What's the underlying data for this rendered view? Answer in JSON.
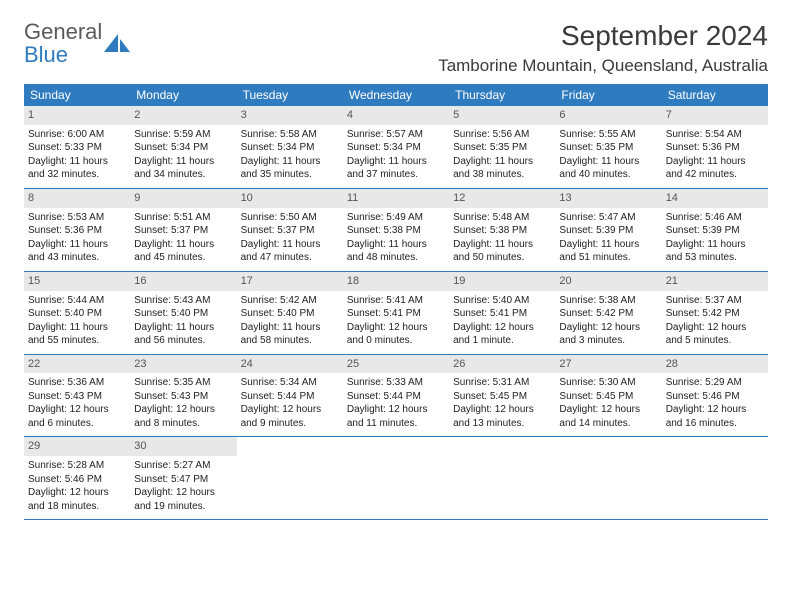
{
  "logo": {
    "line1": "General",
    "line2": "Blue"
  },
  "title": "September 2024",
  "location": "Tamborine Mountain, Queensland, Australia",
  "colors": {
    "header_bg": "#2f7bbf",
    "header_text": "#ffffff",
    "daynum_bg": "#e8e8e8",
    "row_border": "#2f7bbf",
    "logo_gray": "#5a5a5a",
    "logo_blue": "#2f7bbf"
  },
  "weekdays": [
    "Sunday",
    "Monday",
    "Tuesday",
    "Wednesday",
    "Thursday",
    "Friday",
    "Saturday"
  ],
  "weeks": [
    [
      {
        "num": "1",
        "sunrise": "Sunrise: 6:00 AM",
        "sunset": "Sunset: 5:33 PM",
        "daylight": "Daylight: 11 hours and 32 minutes."
      },
      {
        "num": "2",
        "sunrise": "Sunrise: 5:59 AM",
        "sunset": "Sunset: 5:34 PM",
        "daylight": "Daylight: 11 hours and 34 minutes."
      },
      {
        "num": "3",
        "sunrise": "Sunrise: 5:58 AM",
        "sunset": "Sunset: 5:34 PM",
        "daylight": "Daylight: 11 hours and 35 minutes."
      },
      {
        "num": "4",
        "sunrise": "Sunrise: 5:57 AM",
        "sunset": "Sunset: 5:34 PM",
        "daylight": "Daylight: 11 hours and 37 minutes."
      },
      {
        "num": "5",
        "sunrise": "Sunrise: 5:56 AM",
        "sunset": "Sunset: 5:35 PM",
        "daylight": "Daylight: 11 hours and 38 minutes."
      },
      {
        "num": "6",
        "sunrise": "Sunrise: 5:55 AM",
        "sunset": "Sunset: 5:35 PM",
        "daylight": "Daylight: 11 hours and 40 minutes."
      },
      {
        "num": "7",
        "sunrise": "Sunrise: 5:54 AM",
        "sunset": "Sunset: 5:36 PM",
        "daylight": "Daylight: 11 hours and 42 minutes."
      }
    ],
    [
      {
        "num": "8",
        "sunrise": "Sunrise: 5:53 AM",
        "sunset": "Sunset: 5:36 PM",
        "daylight": "Daylight: 11 hours and 43 minutes."
      },
      {
        "num": "9",
        "sunrise": "Sunrise: 5:51 AM",
        "sunset": "Sunset: 5:37 PM",
        "daylight": "Daylight: 11 hours and 45 minutes."
      },
      {
        "num": "10",
        "sunrise": "Sunrise: 5:50 AM",
        "sunset": "Sunset: 5:37 PM",
        "daylight": "Daylight: 11 hours and 47 minutes."
      },
      {
        "num": "11",
        "sunrise": "Sunrise: 5:49 AM",
        "sunset": "Sunset: 5:38 PM",
        "daylight": "Daylight: 11 hours and 48 minutes."
      },
      {
        "num": "12",
        "sunrise": "Sunrise: 5:48 AM",
        "sunset": "Sunset: 5:38 PM",
        "daylight": "Daylight: 11 hours and 50 minutes."
      },
      {
        "num": "13",
        "sunrise": "Sunrise: 5:47 AM",
        "sunset": "Sunset: 5:39 PM",
        "daylight": "Daylight: 11 hours and 51 minutes."
      },
      {
        "num": "14",
        "sunrise": "Sunrise: 5:46 AM",
        "sunset": "Sunset: 5:39 PM",
        "daylight": "Daylight: 11 hours and 53 minutes."
      }
    ],
    [
      {
        "num": "15",
        "sunrise": "Sunrise: 5:44 AM",
        "sunset": "Sunset: 5:40 PM",
        "daylight": "Daylight: 11 hours and 55 minutes."
      },
      {
        "num": "16",
        "sunrise": "Sunrise: 5:43 AM",
        "sunset": "Sunset: 5:40 PM",
        "daylight": "Daylight: 11 hours and 56 minutes."
      },
      {
        "num": "17",
        "sunrise": "Sunrise: 5:42 AM",
        "sunset": "Sunset: 5:40 PM",
        "daylight": "Daylight: 11 hours and 58 minutes."
      },
      {
        "num": "18",
        "sunrise": "Sunrise: 5:41 AM",
        "sunset": "Sunset: 5:41 PM",
        "daylight": "Daylight: 12 hours and 0 minutes."
      },
      {
        "num": "19",
        "sunrise": "Sunrise: 5:40 AM",
        "sunset": "Sunset: 5:41 PM",
        "daylight": "Daylight: 12 hours and 1 minute."
      },
      {
        "num": "20",
        "sunrise": "Sunrise: 5:38 AM",
        "sunset": "Sunset: 5:42 PM",
        "daylight": "Daylight: 12 hours and 3 minutes."
      },
      {
        "num": "21",
        "sunrise": "Sunrise: 5:37 AM",
        "sunset": "Sunset: 5:42 PM",
        "daylight": "Daylight: 12 hours and 5 minutes."
      }
    ],
    [
      {
        "num": "22",
        "sunrise": "Sunrise: 5:36 AM",
        "sunset": "Sunset: 5:43 PM",
        "daylight": "Daylight: 12 hours and 6 minutes."
      },
      {
        "num": "23",
        "sunrise": "Sunrise: 5:35 AM",
        "sunset": "Sunset: 5:43 PM",
        "daylight": "Daylight: 12 hours and 8 minutes."
      },
      {
        "num": "24",
        "sunrise": "Sunrise: 5:34 AM",
        "sunset": "Sunset: 5:44 PM",
        "daylight": "Daylight: 12 hours and 9 minutes."
      },
      {
        "num": "25",
        "sunrise": "Sunrise: 5:33 AM",
        "sunset": "Sunset: 5:44 PM",
        "daylight": "Daylight: 12 hours and 11 minutes."
      },
      {
        "num": "26",
        "sunrise": "Sunrise: 5:31 AM",
        "sunset": "Sunset: 5:45 PM",
        "daylight": "Daylight: 12 hours and 13 minutes."
      },
      {
        "num": "27",
        "sunrise": "Sunrise: 5:30 AM",
        "sunset": "Sunset: 5:45 PM",
        "daylight": "Daylight: 12 hours and 14 minutes."
      },
      {
        "num": "28",
        "sunrise": "Sunrise: 5:29 AM",
        "sunset": "Sunset: 5:46 PM",
        "daylight": "Daylight: 12 hours and 16 minutes."
      }
    ],
    [
      {
        "num": "29",
        "sunrise": "Sunrise: 5:28 AM",
        "sunset": "Sunset: 5:46 PM",
        "daylight": "Daylight: 12 hours and 18 minutes."
      },
      {
        "num": "30",
        "sunrise": "Sunrise: 5:27 AM",
        "sunset": "Sunset: 5:47 PM",
        "daylight": "Daylight: 12 hours and 19 minutes."
      },
      {
        "empty": true
      },
      {
        "empty": true
      },
      {
        "empty": true
      },
      {
        "empty": true
      },
      {
        "empty": true
      }
    ]
  ]
}
